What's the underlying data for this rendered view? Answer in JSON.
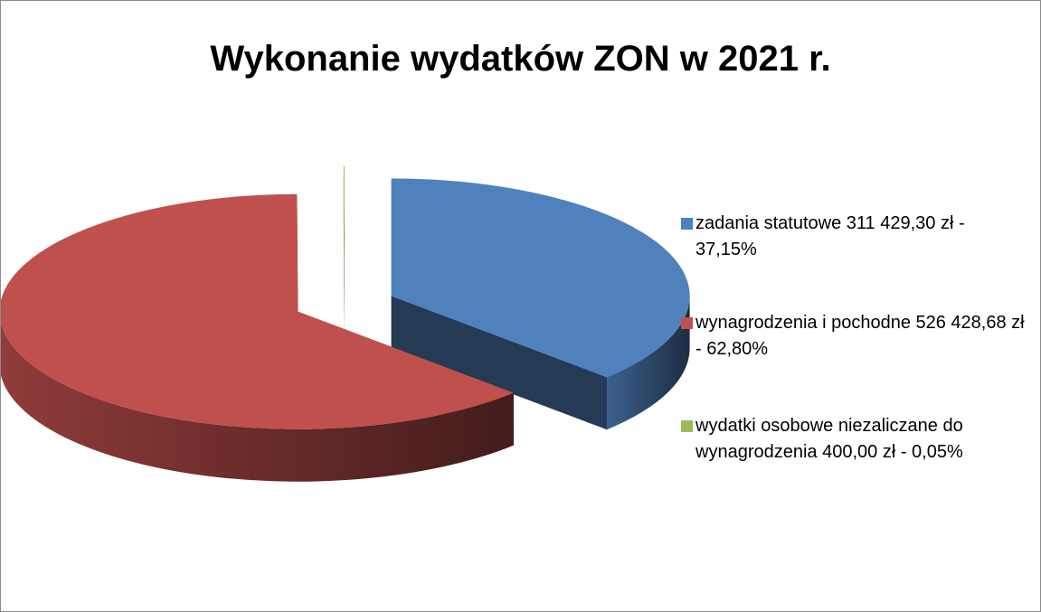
{
  "chart_data": {
    "type": "pie",
    "title": "Wykonanie wydatków ZON w 2021 r.",
    "categories": [
      "zadania statutowe 311 429,30 zł - 37,15%",
      "wynagrodzenia i pochodne  526 428,68 zł - 62,80%",
      "wydatki osobowe niezaliczane do wynagrodzenia 400,00 zł - 0,05%"
    ],
    "values": [
      37.15,
      62.8,
      0.05
    ],
    "colors": [
      "#4f81bd",
      "#c0504d",
      "#9bbb59"
    ],
    "legend": "right"
  }
}
